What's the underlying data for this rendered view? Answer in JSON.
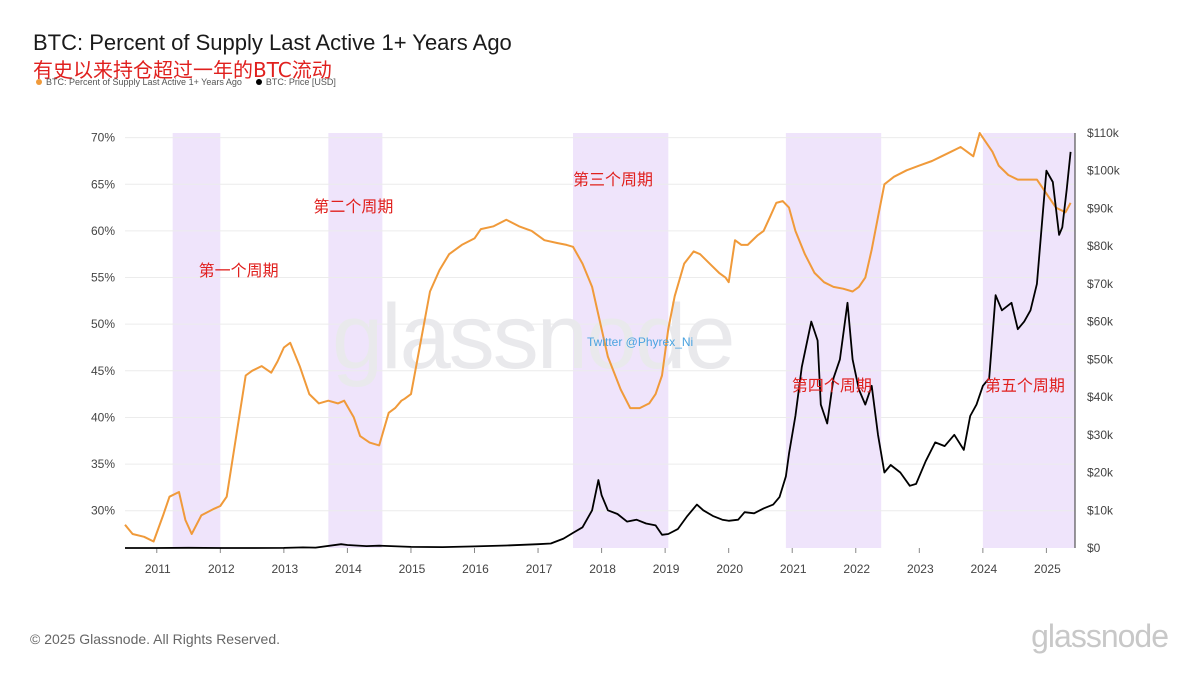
{
  "header": {
    "title": "BTC: Percent of Supply Last Active 1+ Years Ago",
    "subtitle": "有史以来持仓超过一年的BTC流动"
  },
  "legend": [
    {
      "label": "BTC: Percent of Supply Last Active 1+ Years Ago",
      "color": "#f09a3a"
    },
    {
      "label": "BTC: Price [USD]",
      "color": "#000000"
    }
  ],
  "footer": {
    "copyright": "© 2025 Glassnode. All Rights Reserved.",
    "brand": "glassnode"
  },
  "watermark": {
    "text": "glassnode",
    "twitter": "Twitter @Phyrex_Ni"
  },
  "chart_data": {
    "type": "line",
    "title": "BTC: Percent of Supply Last Active 1+ Years Ago",
    "x_ticks": [
      "2011",
      "2012",
      "2013",
      "2014",
      "2015",
      "2016",
      "2017",
      "2018",
      "2019",
      "2020",
      "2021",
      "2022",
      "2023",
      "2024",
      "2025"
    ],
    "y_left_ticks": [
      "30%",
      "35%",
      "40%",
      "45%",
      "50%",
      "55%",
      "60%",
      "65%",
      "70%"
    ],
    "y_right_ticks": [
      "$0",
      "$10k",
      "$20k",
      "$30k",
      "$40k",
      "$50k",
      "$60k",
      "$70k",
      "$80k",
      "$90k",
      "$100k",
      "$110k"
    ],
    "ylim_left": [
      26,
      70.5
    ],
    "ylim_right": [
      0,
      110000
    ],
    "xlim": [
      2010.5,
      2025.45
    ],
    "grid": true,
    "legend_position": "top-left",
    "shaded_periods": [
      {
        "start": 2011.25,
        "end": 2012.0,
        "label": "第一个周期"
      },
      {
        "start": 2013.7,
        "end": 2014.55,
        "label": "第二个周期"
      },
      {
        "start": 2017.55,
        "end": 2019.05,
        "label": "第三个周期"
      },
      {
        "start": 2020.9,
        "end": 2022.4,
        "label": "第四个周期"
      },
      {
        "start": 2024.0,
        "end": 2025.45,
        "label": "第五个周期"
      }
    ],
    "series": [
      {
        "name": "BTC: Percent of Supply Last Active 1+ Years Ago",
        "axis": "left",
        "color": "#f09a3a",
        "x": [
          2010.5,
          2010.62,
          2010.8,
          2010.95,
          2011.1,
          2011.2,
          2011.35,
          2011.45,
          2011.55,
          2011.7,
          2011.9,
          2012.0,
          2012.1,
          2012.25,
          2012.4,
          2012.5,
          2012.65,
          2012.8,
          2012.9,
          2013.0,
          2013.1,
          2013.25,
          2013.4,
          2013.55,
          2013.7,
          2013.85,
          2013.95,
          2014.1,
          2014.2,
          2014.35,
          2014.5,
          2014.65,
          2014.75,
          2014.85,
          2014.9,
          2015.0,
          2015.15,
          2015.3,
          2015.45,
          2015.6,
          2015.8,
          2016.0,
          2016.1,
          2016.3,
          2016.5,
          2016.7,
          2016.9,
          2017.1,
          2017.3,
          2017.45,
          2017.55,
          2017.7,
          2017.85,
          2017.95,
          2018.1,
          2018.3,
          2018.45,
          2018.6,
          2018.75,
          2018.85,
          2018.95,
          2019.05,
          2019.15,
          2019.3,
          2019.45,
          2019.55,
          2019.7,
          2019.85,
          2019.95,
          2020.0,
          2020.1,
          2020.2,
          2020.3,
          2020.45,
          2020.55,
          2020.65,
          2020.75,
          2020.85,
          2020.95,
          2021.05,
          2021.2,
          2021.35,
          2021.5,
          2021.65,
          2021.8,
          2021.95,
          2022.05,
          2022.15,
          2022.25,
          2022.35,
          2022.45,
          2022.6,
          2022.8,
          2023.0,
          2023.2,
          2023.35,
          2023.5,
          2023.65,
          2023.75,
          2023.85,
          2023.95,
          2024.05,
          2024.15,
          2024.25,
          2024.4,
          2024.55,
          2024.7,
          2024.85,
          2025.0,
          2025.15,
          2025.3,
          2025.38
        ],
        "values": [
          28.5,
          27.5,
          27.2,
          26.7,
          29.5,
          31.5,
          32.0,
          29.0,
          27.5,
          29.5,
          30.2,
          30.5,
          31.5,
          38.0,
          44.5,
          45.0,
          45.5,
          44.8,
          46.0,
          47.5,
          48.0,
          45.5,
          42.5,
          41.5,
          41.8,
          41.5,
          41.8,
          40.0,
          38.0,
          37.3,
          37.0,
          40.5,
          41.0,
          41.8,
          42.0,
          42.5,
          48.0,
          53.5,
          55.8,
          57.5,
          58.5,
          59.2,
          60.2,
          60.5,
          61.2,
          60.5,
          60.0,
          59.0,
          58.7,
          58.5,
          58.3,
          56.5,
          54.0,
          51.0,
          46.5,
          43.0,
          41.0,
          41.0,
          41.5,
          42.5,
          44.5,
          49.5,
          53.0,
          56.5,
          57.8,
          57.5,
          56.5,
          55.5,
          55.0,
          54.5,
          59.0,
          58.5,
          58.5,
          59.5,
          60.0,
          61.5,
          63.0,
          63.2,
          62.5,
          60.0,
          57.5,
          55.5,
          54.5,
          54.0,
          53.8,
          53.5,
          54.0,
          55.0,
          58.0,
          61.5,
          65.0,
          65.8,
          66.5,
          67.0,
          67.5,
          68.0,
          68.5,
          69.0,
          68.5,
          68.0,
          70.5,
          69.5,
          68.5,
          67.0,
          66.0,
          65.5,
          65.5,
          65.5,
          64.0,
          62.5,
          62.0,
          63.0
        ]
      },
      {
        "name": "BTC: Price [USD]",
        "axis": "right",
        "color": "#000000",
        "x": [
          2010.5,
          2011.0,
          2011.5,
          2012.0,
          2012.5,
          2013.0,
          2013.3,
          2013.5,
          2013.9,
          2014.0,
          2014.3,
          2014.5,
          2015.0,
          2015.5,
          2016.0,
          2016.5,
          2017.0,
          2017.2,
          2017.4,
          2017.55,
          2017.7,
          2017.85,
          2017.95,
          2018.0,
          2018.1,
          2018.25,
          2018.4,
          2018.55,
          2018.7,
          2018.85,
          2018.95,
          2019.05,
          2019.2,
          2019.35,
          2019.5,
          2019.6,
          2019.75,
          2019.9,
          2020.0,
          2020.15,
          2020.25,
          2020.4,
          2020.55,
          2020.7,
          2020.8,
          2020.9,
          2020.95,
          2021.05,
          2021.15,
          2021.3,
          2021.4,
          2021.45,
          2021.55,
          2021.65,
          2021.75,
          2021.87,
          2021.95,
          2022.05,
          2022.15,
          2022.25,
          2022.35,
          2022.45,
          2022.55,
          2022.7,
          2022.85,
          2022.95,
          2023.1,
          2023.25,
          2023.4,
          2023.55,
          2023.7,
          2023.8,
          2023.9,
          2024.0,
          2024.1,
          2024.2,
          2024.3,
          2024.45,
          2024.55,
          2024.65,
          2024.75,
          2024.85,
          2024.95,
          2025.0,
          2025.1,
          2025.2,
          2025.25,
          2025.32,
          2025.38
        ],
        "values": [
          0,
          0,
          50,
          10,
          10,
          30,
          150,
          100,
          1000,
          800,
          500,
          600,
          300,
          250,
          420,
          650,
          1000,
          1200,
          2500,
          4000,
          5500,
          10000,
          18000,
          14000,
          10000,
          9000,
          7000,
          7500,
          6500,
          6000,
          3500,
          3700,
          5000,
          8500,
          11500,
          10000,
          8500,
          7500,
          7200,
          7500,
          9500,
          9200,
          10500,
          11500,
          13500,
          19000,
          25000,
          35000,
          48000,
          60000,
          55000,
          38000,
          33000,
          45000,
          50000,
          65000,
          50000,
          42000,
          38000,
          43000,
          30000,
          20000,
          22000,
          20000,
          16500,
          17000,
          23000,
          28000,
          27000,
          30000,
          26000,
          35000,
          38000,
          43000,
          45000,
          67000,
          63000,
          65000,
          58000,
          60000,
          63000,
          70000,
          90000,
          100000,
          97000,
          83000,
          85000,
          95000,
          105000
        ]
      }
    ]
  }
}
